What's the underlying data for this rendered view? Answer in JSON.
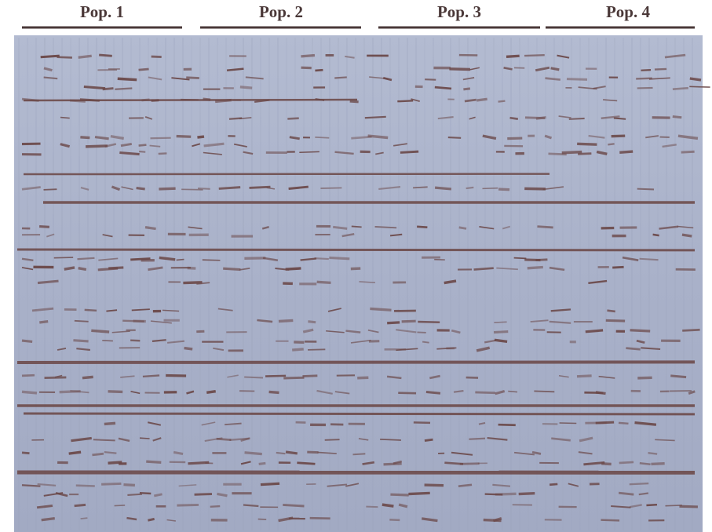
{
  "header": {
    "labels": [
      "Pop. 1",
      "Pop. 2",
      "Pop. 3",
      "Pop. 4"
    ]
  }
}
